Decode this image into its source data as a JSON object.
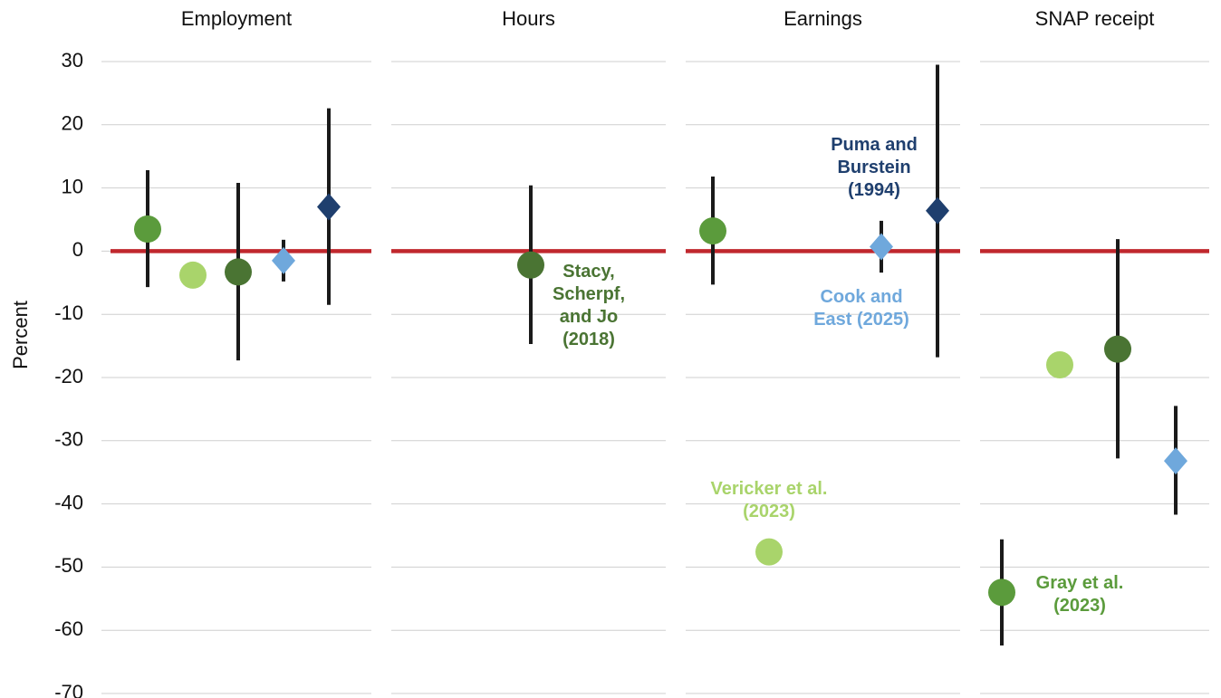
{
  "chart_data": {
    "type": "dot-errorbar",
    "panels": [
      "Employment",
      "Hours",
      "Earnings",
      "SNAP receipt"
    ],
    "ylabel": "Percent",
    "ylim": [
      -70,
      30
    ],
    "yticks": [
      30,
      20,
      10,
      0,
      -10,
      -20,
      -30,
      -40,
      -50,
      -60,
      -70
    ],
    "grid": true,
    "zero_line_color": "#c0272d",
    "series": [
      {
        "name": "Gray et al. (2023)",
        "color": "#5b9b3c",
        "marker": "circle",
        "label_panel": 3,
        "values": [
          3.5,
          null,
          3.2,
          -54
        ],
        "lower": [
          -5.7,
          null,
          -5.3,
          -62.4
        ],
        "upper": [
          12.8,
          null,
          11.8,
          -45.6
        ]
      },
      {
        "name": "Vericker et al. (2023)",
        "color": "#a9d46b",
        "marker": "circle",
        "label_panel": 2,
        "values": [
          -3.8,
          null,
          -47.6,
          -18
        ],
        "lower": [
          null,
          null,
          null,
          null
        ],
        "upper": [
          null,
          null,
          null,
          null
        ]
      },
      {
        "name": "Stacy, Scherpf, and Jo (2018)",
        "color": "#4a7433",
        "marker": "circle",
        "label_panel": 1,
        "values": [
          -3.3,
          -2.2,
          null,
          -15.5
        ],
        "lower": [
          -17.3,
          -14.7,
          null,
          -32.8
        ],
        "upper": [
          10.8,
          10.4,
          null,
          1.9
        ]
      },
      {
        "name": "Cook and East (2025)",
        "color": "#6fa8dc",
        "marker": "diamond",
        "label_panel": 2,
        "values": [
          -1.5,
          null,
          0.7,
          -33.2
        ],
        "lower": [
          -4.8,
          null,
          -3.4,
          -41.7
        ],
        "upper": [
          1.8,
          null,
          4.8,
          -24.5
        ]
      },
      {
        "name": "Puma and Burstein (1994)",
        "color": "#1f3f6e",
        "marker": "diamond",
        "label_panel": 2,
        "values": [
          7,
          null,
          6.4,
          null
        ],
        "lower": [
          -8.5,
          null,
          -16.8,
          null
        ],
        "upper": [
          22.6,
          null,
          29.5,
          null
        ]
      }
    ]
  }
}
